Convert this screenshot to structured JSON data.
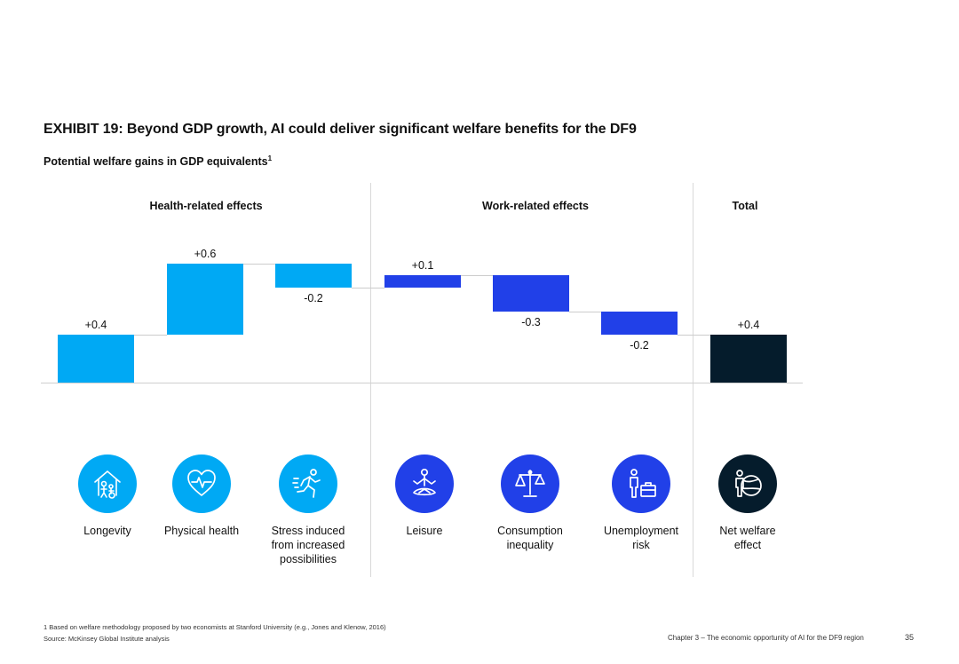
{
  "title": "EXHIBIT 19: Beyond GDP growth, AI could deliver significant welfare benefits for the DF9",
  "subtitle": "Potential welfare gains in GDP equivalents",
  "subtitle_sup": "1",
  "groups": [
    "Health-related effects",
    "Work-related effects",
    "Total"
  ],
  "colors": {
    "health": "#00a9f4",
    "work": "#2140e8",
    "total": "#051c2c"
  },
  "chart_data": {
    "type": "waterfall",
    "title": "Potential welfare gains in GDP equivalents",
    "categories": [
      "Longevity",
      "Physical health",
      "Stress induced from increased possibilities",
      "Leisure",
      "Consumption inequality",
      "Unemployment risk",
      "Net welfare effect"
    ],
    "values": [
      0.4,
      0.6,
      -0.2,
      0.1,
      -0.3,
      -0.2,
      0.4
    ],
    "labels": [
      "+0.4",
      "+0.6",
      "-0.2",
      "+0.1",
      "-0.3",
      "-0.2",
      "+0.4"
    ],
    "groups": [
      "health",
      "health",
      "health",
      "work",
      "work",
      "work",
      "total"
    ],
    "kinds": [
      "delta",
      "delta",
      "delta",
      "delta",
      "delta",
      "delta",
      "total"
    ],
    "ylim": [
      0,
      1.0
    ],
    "grid": false,
    "legend": "none"
  },
  "category_lines": [
    [
      "Longevity"
    ],
    [
      "Physical health"
    ],
    [
      "Stress induced",
      "from increased",
      "possibilities"
    ],
    [
      "Leisure"
    ],
    [
      "Consumption",
      "inequality"
    ],
    [
      "Unemployment",
      "risk"
    ],
    [
      "Net welfare",
      "effect"
    ]
  ],
  "icons": [
    "family-house-icon",
    "heart-pulse-icon",
    "running-person-icon",
    "meditation-icon",
    "balance-scale-icon",
    "person-briefcase-icon",
    "person-globe-icon"
  ],
  "footnote": "1  Based on welfare methodology proposed by two economists at Stanford University (e.g., Jones and Klenow, 2016)",
  "source": "Source: McKinsey Global Institute analysis",
  "chapter": "Chapter 3 – The economic opportunity of AI for the DF9 region",
  "page_number": "35"
}
